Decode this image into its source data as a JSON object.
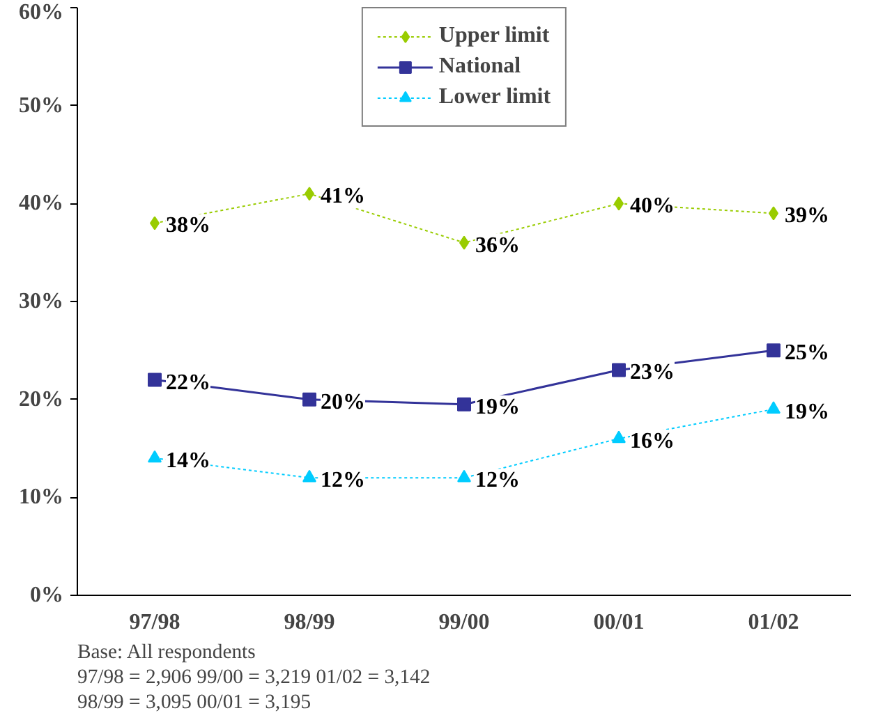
{
  "chart_data": {
    "type": "line",
    "categories": [
      "97/98",
      "98/99",
      "99/00",
      "00/01",
      "01/02"
    ],
    "series": [
      {
        "name": "Upper limit",
        "color": "#99cc00",
        "values": [
          38,
          41,
          36,
          40,
          39
        ],
        "marker": "diamond",
        "line_style": "dotted",
        "value_labels": [
          "38%",
          "41%",
          "36%",
          "40%",
          "39%"
        ]
      },
      {
        "name": "National",
        "color": "#333399",
        "values": [
          22,
          20,
          19.5,
          23,
          25
        ],
        "marker": "square",
        "line_style": "solid",
        "value_labels": [
          "22%",
          "20%",
          "19%",
          "23%",
          "25%"
        ]
      },
      {
        "name": "Lower limit",
        "color": "#00ccff",
        "values": [
          14,
          12,
          12,
          16,
          19
        ],
        "marker": "triangle",
        "line_style": "dotted",
        "value_labels": [
          "14%",
          "12%",
          "12%",
          "16%",
          "19%"
        ]
      }
    ],
    "ylim": [
      0,
      60
    ],
    "yticks": [
      {
        "value": 0,
        "label": "0%"
      },
      {
        "value": 10,
        "label": "10%"
      },
      {
        "value": 20,
        "label": "20%"
      },
      {
        "value": 30,
        "label": "30%"
      },
      {
        "value": 40,
        "label": "40%"
      },
      {
        "value": 50,
        "label": "50%"
      },
      {
        "value": 60,
        "label": "60%"
      }
    ],
    "grid": false,
    "legend": "top",
    "annotations": [
      "Base:      All respondents",
      "               97/98 = 2,906      99/00 = 3,219      01/02 = 3,142",
      "               98/99 = 3,095      00/01 = 3,195"
    ]
  }
}
